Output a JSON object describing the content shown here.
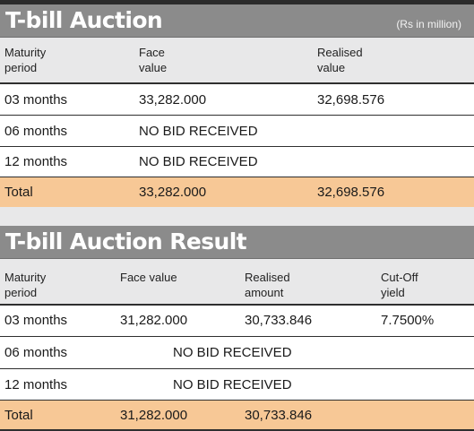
{
  "auction": {
    "title": "T-bill Auction",
    "unit": "(Rs in million)",
    "columns": {
      "maturity": [
        "Maturity",
        "period"
      ],
      "face": [
        "Face",
        "value"
      ],
      "realised": [
        "Realised",
        "value"
      ]
    },
    "rows": [
      {
        "maturity": "03 months",
        "face": "33,282.000",
        "realised": "32,698.576"
      },
      {
        "maturity": "06 months",
        "note": "NO BID RECEIVED"
      },
      {
        "maturity": "12 months",
        "note": "NO BID RECEIVED"
      }
    ],
    "total": {
      "label": "Total",
      "face": "33,282.000",
      "realised": "32,698.576"
    }
  },
  "result": {
    "title": "T-bill Auction Result",
    "columns": {
      "maturity": [
        "Maturity",
        "period"
      ],
      "face": [
        "Face value"
      ],
      "realised": [
        "Realised",
        "amount"
      ],
      "cutoff": [
        "Cut-Off",
        "yield"
      ]
    },
    "rows": [
      {
        "maturity": "03 months",
        "face": "31,282.000",
        "realised": "30,733.846",
        "cutoff": "7.7500%"
      },
      {
        "maturity": "06 months",
        "note": "NO BID RECEIVED"
      },
      {
        "maturity": "12 months",
        "note": "NO BID RECEIVED"
      }
    ],
    "total": {
      "label": "Total",
      "face": "31,282.000",
      "realised": "30,733.846"
    }
  },
  "colors": {
    "header_bar": "#8b8b8b",
    "column_header_bg": "#e8e8e9",
    "total_row_bg": "#f7c896"
  }
}
